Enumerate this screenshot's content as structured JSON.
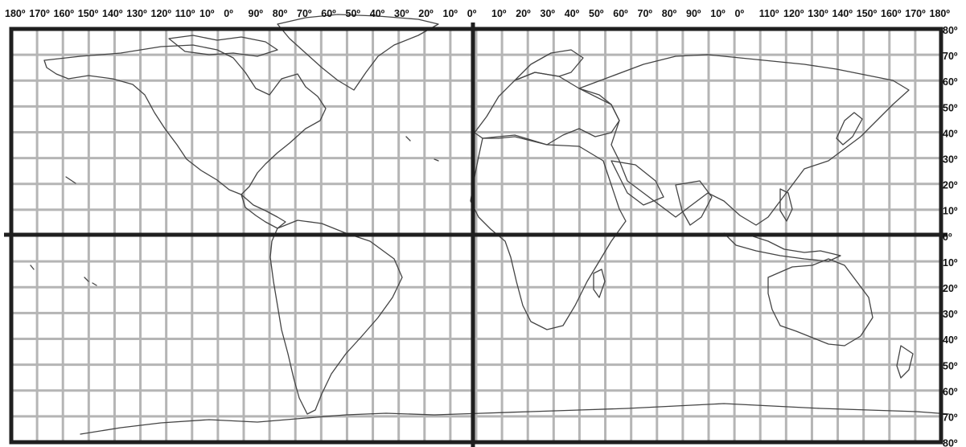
{
  "map": {
    "longitude_labels": [
      "180º",
      "170º",
      "160º",
      "150º",
      "140º",
      "130º",
      "120º",
      "110º",
      "10º",
      "0º",
      "90º",
      "80º",
      "70º",
      "60º",
      "50º",
      "40º",
      "30º",
      "20º",
      "10º",
      "0º",
      "10º",
      "20º",
      "30º",
      "40º",
      "50º",
      "60º",
      "70º",
      "80º",
      "90º",
      "10º",
      "0º",
      "110º",
      "120º",
      "130º",
      "140º",
      "150º",
      "160º",
      "170º",
      "180º"
    ],
    "latitude_labels": [
      "80º",
      "70º",
      "60º",
      "50º",
      "40º",
      "30º",
      "20º",
      "10º",
      "0º",
      "10º",
      "20º",
      "30º",
      "40º",
      "50º",
      "60º",
      "70º",
      "80º"
    ],
    "colors": {
      "background": "#ffffff",
      "grid": "#b5b5b5",
      "frame": "#1f1f1f",
      "coastline": "#444444",
      "label": "#111111"
    }
  }
}
